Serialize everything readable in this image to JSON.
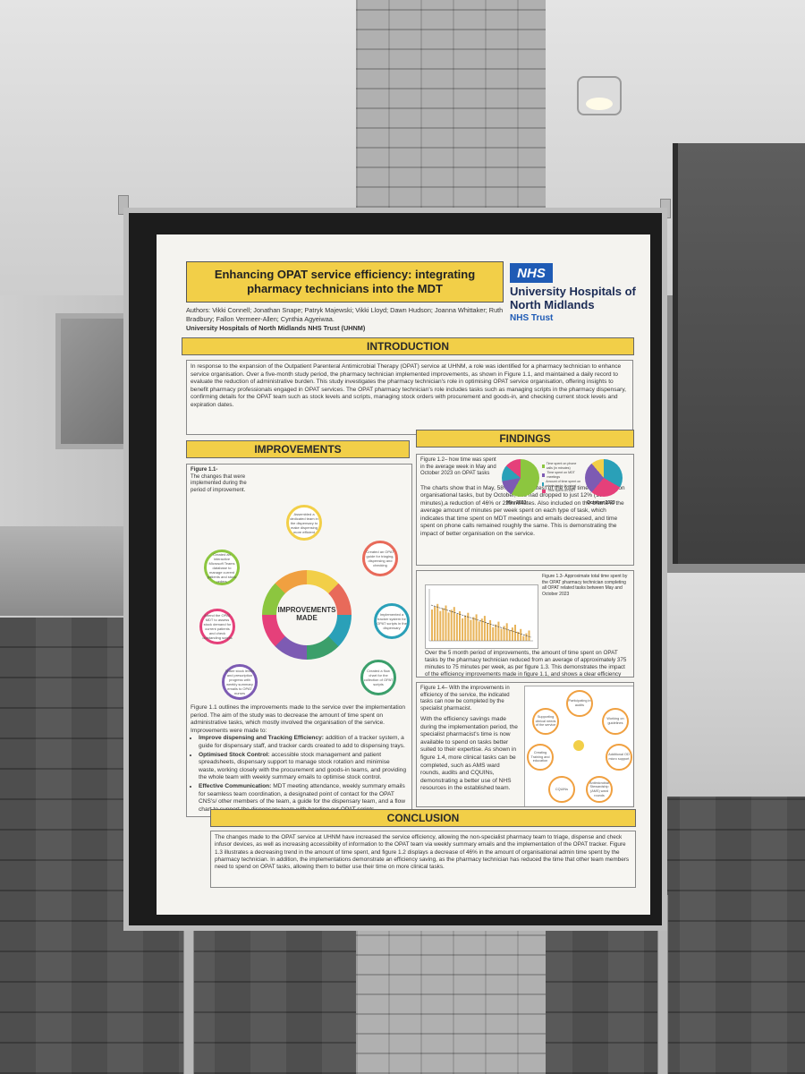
{
  "poster": {
    "title": "Enhancing OPAT service efficiency: integrating pharmacy technicians into the MDT",
    "logo_text": "NHS",
    "org_name": "University Hospitals of North Midlands",
    "trust_label": "NHS Trust",
    "authors": "Authors: Vikki Connell; Jonathan Snape; Patryk Majewski; Vikki Lloyd; Dawn Hudson; Joanna Whittaker; Ruth Bradbury; Fallon Vermeer-Allen; Cynthia Agyeiwaa.",
    "affiliation": "University Hospitals of North Midlands NHS Trust (UHNM)",
    "introduction": {
      "heading": "INTRODUCTION",
      "text": "In response to the expansion of the Outpatient Parenteral Antimicrobial Therapy (OPAT) service at UHNM, a role was identified for a pharmacy technician to enhance service organisation. Over a five-month study period, the pharmacy technician implemented improvements, as shown in Figure 1.1, and maintained a daily record to evaluate the reduction of administrative burden. This study investigates the pharmacy technician's role in optimising OPAT service organisation, offering insights to benefit pharmacy professionals engaged in OPAT services. The OPAT pharmacy technician's role includes tasks such as managing scripts in the pharmacy dispensary, confirming details for the OPAT team such as stock levels and scripts, managing stock orders with procurement and goods-in, and checking current stock levels and expiration dates."
    },
    "improvements": {
      "heading": "IMPROVEMENTS",
      "figure_label": "Figure 1.1-",
      "figure_caption": "The changes that were implemented during the period of improvement.",
      "center_label": "IMPROVEMENTS MADE",
      "petals": [
        "Assembled a dedicated team in the dispensary to make dispensing more efficient",
        "Created an OPAT guide for triaging, dispensing and checking",
        "Implemented a tracker system for OPAT scripts in the dispensary",
        "Created a flow chart for the collection of OPAT scripts",
        "Share stock levels and prescription progress with weekly summary emails to OPAT nurses",
        "Attend the OPAT MDT to assess stock demand for current patients and check outstanding scripts",
        "Created an interactive Microsoft Teams database to manage current patients and stock orders"
      ],
      "body": "Figure 1.1 outlines the improvements made to the service over the implementation period. The aim of the study was to decrease the amount of time spent on administrative tasks, which mostly involved the organisation of the service.",
      "list_intro": "Improvements were made to:",
      "bullets": [
        {
          "title": "Improve dispensing and Tracking Efficiency:",
          "text": "addition of a tracker system, a guide for dispensary staff, and tracker cards created to add to dispensing trays."
        },
        {
          "title": "Optimised Stock Control:",
          "text": "accessible stock management and patient spreadsheets, dispensary support to manage stock rotation and minimise waste, working closely with the procurement and goods-in teams, and providing the whole team with weekly summary emails to optimise stock control."
        },
        {
          "title": "Effective Communication:",
          "text": "MDT meeting attendance, weekly summary emails for seamless team coordination, a designated point of contact for the OPAT CNS's/ other members of the team, a guide for the dispensary team, and a flow chart to support the dispensary team with handing out OPAT scripts."
        }
      ]
    },
    "findings": {
      "heading": "FINDINGS",
      "fig12_caption": "Figure 1.2– how time was spent in the average week in May and October 2023 on OPAT tasks",
      "fig12_text": "The charts show that in May, 58% (233 minutes) of the total time spent was on organisational tasks, but by October, this had dropped to just 12% (10 minutes),a reduction of 46% or 223 minutes. Also included on the charts is the average amount of minutes per week spent on each type of task, which indicates that time spent on MDT meetings and emails decreased, and time spent on phone calls remained roughly the same. This is demonstrating the impact of better organisation on the service.",
      "pie_labels": [
        "May 2023",
        "October 2023"
      ],
      "legend": [
        "Time spent on phone calls (in minutes)",
        "Time spent on MDT meetings",
        "Amount of time spent on admin tasks (in mins)",
        "Time spent on MDT"
      ],
      "fig13_caption": "Figure 1.3- Approximate total time spent by the OPAT pharmacy technician completing all OPAT related tasks between May and October 2023",
      "fig13_text": "Over the 5 month period of improvements, the amount of time spent on OPAT tasks by the pharmacy technician reduced from an average of approximately 375 minutes to 75 minutes per week, as per figure 1.3. This demonstrates the impact of the efficiency improvements made in figure 1.1, and shows a clear efficiency saving.",
      "fig14_caption": "Figure 1.4– With the improvements in efficiency of the service, the indicated tasks can now be completed by the specialist pharmacist.",
      "fig14_text": "With the efficiency savings made during the implementation period, the specialist pharmacist's time is now available to spend on tasks better suited to their expertise. As shown in figure 1.4, more clinical tasks can be completed, such as AMS ward rounds, audits and CQUINs, demonstrating a better use of NHS resources in the established team.",
      "hub_nodes": [
        "Participating in audits",
        "Working on guidelines",
        "Additional OD micro support",
        "Antimicrobial Stewardship (AMS) ward rounds",
        "CQUINs",
        "Creating Training and education",
        "Supporting clinical needs of the service"
      ]
    },
    "conclusion": {
      "heading": "CONCLUSION",
      "text": "The changes made to the OPAT service at UHNM have increased the service efficiency, allowing the non-specialist pharmacy team to triage, dispense and check infusor devices, as well as increasing accessibility of information to the OPAT team via weekly summary emails and the implementation of the OPAT tracker. Figure 1.3 illustrates a decreasing trend in the amount of time spent, and figure 1.2 displays a decrease of 46% in the amount of organisational admin time spent by the pharmacy technician. In addition, the implementations demonstrate an efficiency saving, as the pharmacy technician has reduced the time that other team members need to spend on OPAT tasks, allowing them to better use their time on more clinical tasks."
    },
    "colors": {
      "accent": "#f2cf48",
      "nhs_blue": "#1f5bb5",
      "bar": "#e8b45a"
    }
  }
}
